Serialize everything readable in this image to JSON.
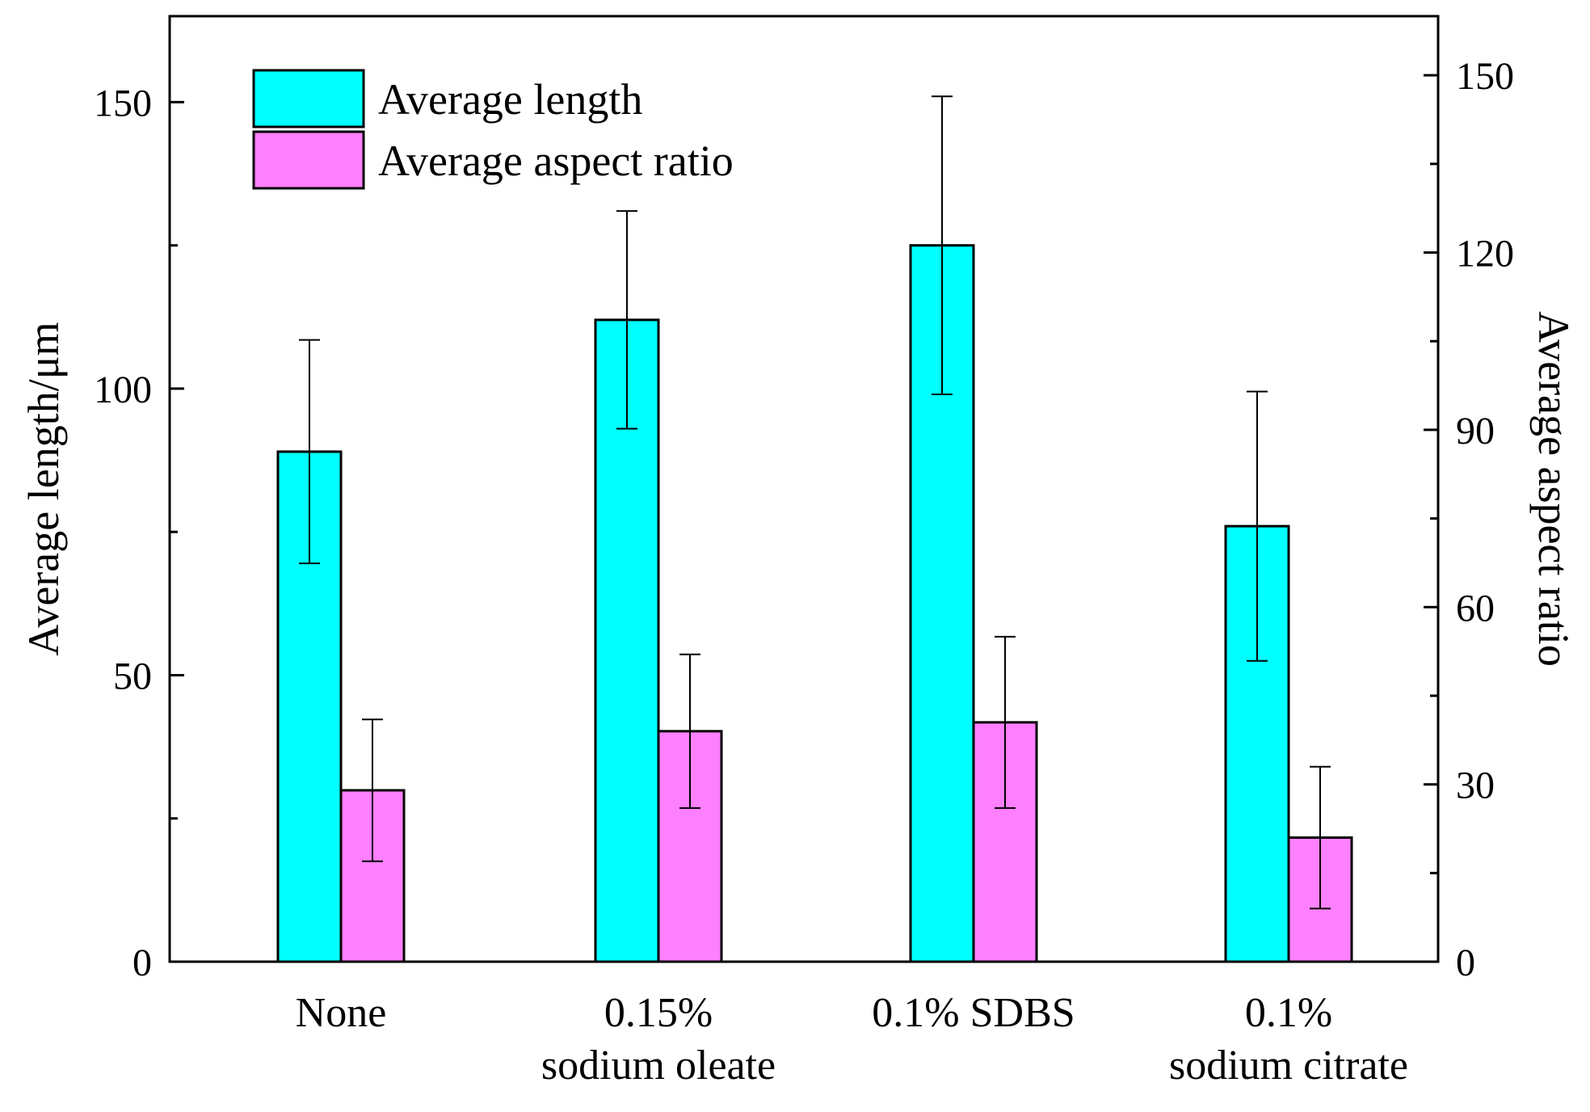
{
  "chart_data": {
    "type": "bar",
    "categories": [
      [
        "None"
      ],
      [
        "0.15%",
        "sodium oleate"
      ],
      [
        "0.1% SDBS"
      ],
      [
        "0.1%",
        "sodium citrate"
      ]
    ],
    "series": [
      {
        "name": "Average length",
        "axis": "left",
        "color": "#00ffff",
        "values": [
          89,
          112,
          125,
          76
        ],
        "errors": [
          19.5,
          19,
          26,
          23.5
        ]
      },
      {
        "name": "Average aspect ratio",
        "axis": "right",
        "color": "#ff80ff",
        "values": [
          29,
          39,
          40.5,
          21
        ],
        "errors": [
          12,
          13,
          14.5,
          12
        ]
      }
    ],
    "ylabel_left": "Average length/μm",
    "ylabel_right": "Average aspect ratio",
    "ylim_left": [
      0,
      165
    ],
    "ylim_right": [
      0,
      160
    ],
    "yticks_left": [
      0,
      50,
      100,
      150
    ],
    "yticks_right": [
      0,
      30,
      60,
      90,
      120,
      150
    ],
    "legend": {
      "position": "top-left",
      "entries": [
        "Average length",
        "Average aspect ratio"
      ]
    },
    "grid": false
  }
}
